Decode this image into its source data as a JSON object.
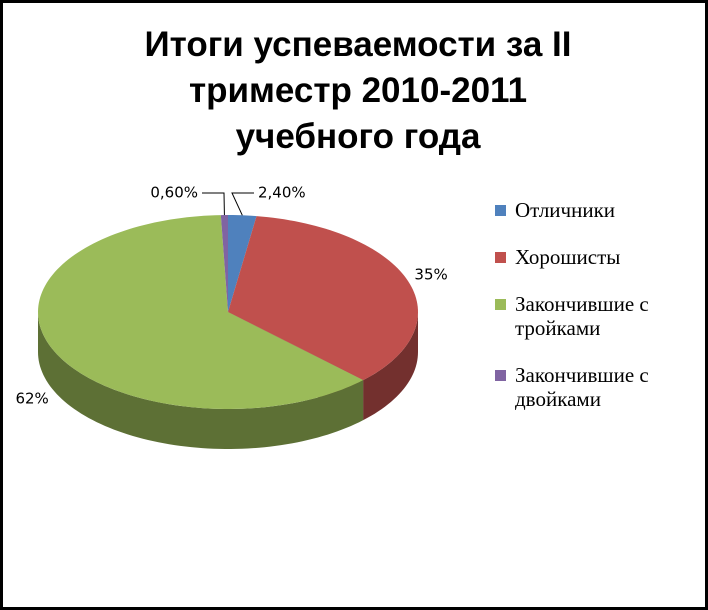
{
  "chart_data": {
    "type": "pie",
    "title": "Итоги успеваемости за II триместр 2010-2011 учебного года",
    "categories": [
      "Отличники",
      "Хорошисты",
      "Закончившие с тройками",
      "Закончившие с двойками"
    ],
    "values": [
      2.4,
      35,
      62,
      0.6
    ],
    "value_labels": [
      "2,40%",
      "35%",
      "62%",
      "0,60%"
    ],
    "colors": [
      "#4f81bd",
      "#c0504d",
      "#9bbb59",
      "#8064a2"
    ],
    "legend": "right"
  }
}
